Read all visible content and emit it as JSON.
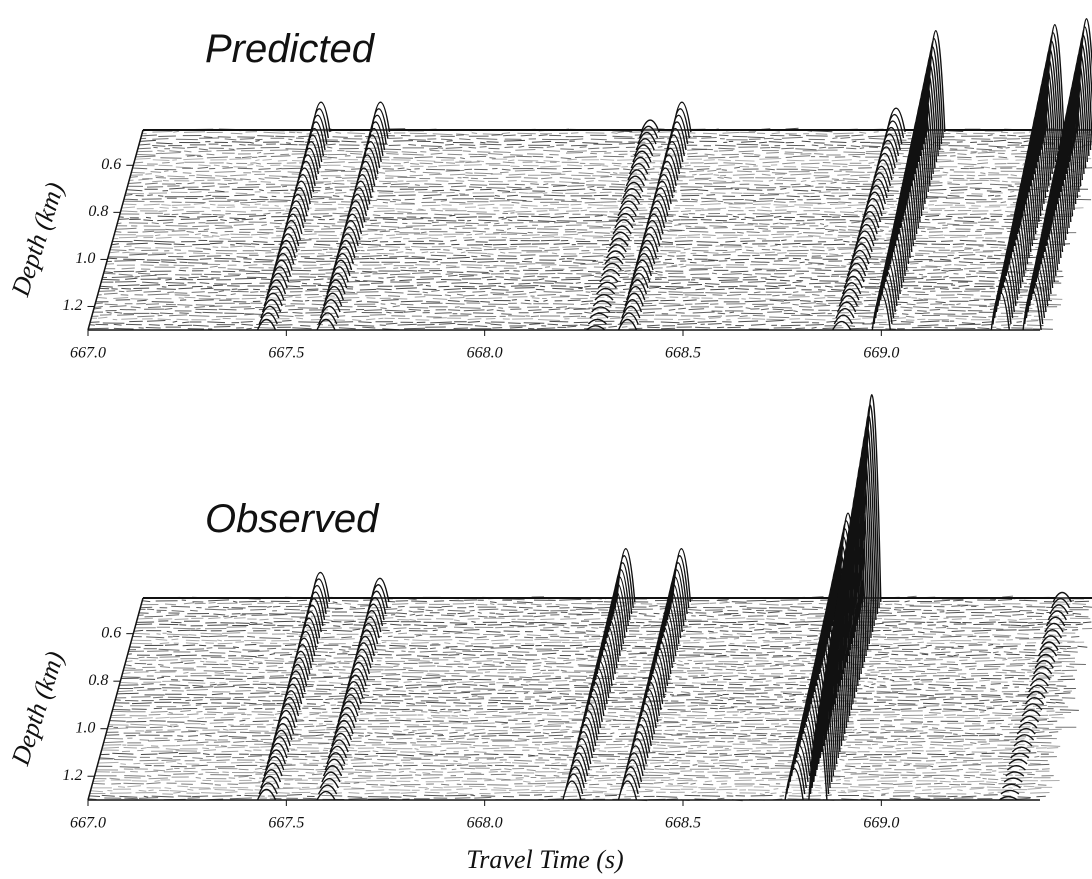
{
  "chart_data": [
    {
      "type": "waterfall",
      "title": "Predicted",
      "ylabel": "Depth (km)",
      "x": [
        667.45,
        667.6,
        668.28,
        668.36,
        668.9,
        669.0,
        669.3,
        669.38
      ],
      "values": [
        0.25,
        0.25,
        0.1,
        0.25,
        0.2,
        0.85,
        0.9,
        0.95
      ],
      "color": "#111111",
      "xlim": [
        667,
        669.4
      ],
      "xticks": [
        {
          "value": 667,
          "label": "667.0"
        },
        667.5,
        {
          "value": 668,
          "label": "668.0"
        },
        668.5,
        {
          "value": 669,
          "label": "669.0"
        }
      ],
      "ylim": [
        0.45,
        1.3
      ],
      "yticks": [
        0.6,
        0.8,
        {
          "value": 1,
          "label": "1.0"
        },
        1.2
      ]
    },
    {
      "type": "waterfall",
      "title": "Observed",
      "ylabel": "Depth (km)",
      "xlabel": "Travel Time (s)",
      "x": [
        667.45,
        667.6,
        668.22,
        668.36,
        668.78,
        668.84,
        669.32
      ],
      "values": [
        0.25,
        0.2,
        0.45,
        0.45,
        0.75,
        1.75,
        0.08
      ],
      "color": "#111111",
      "xlim": [
        667,
        669.4
      ],
      "xticks": [
        {
          "value": 667,
          "label": "667.0"
        },
        667.5,
        {
          "value": 668,
          "label": "668.0"
        },
        668.5,
        {
          "value": 669,
          "label": "669.0"
        }
      ],
      "ylim": [
        0.45,
        1.3
      ],
      "yticks": [
        0.6,
        0.8,
        {
          "value": 1,
          "label": "1.0"
        },
        1.2
      ]
    }
  ]
}
